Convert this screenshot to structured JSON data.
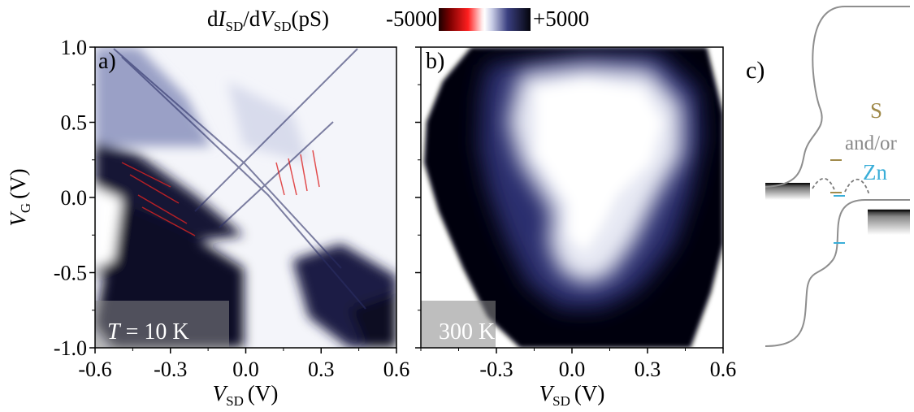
{
  "colorbar": {
    "quantity_main_1": "d",
    "quantity_sub_1": "I",
    "quantity_subscript_1": "SD",
    "quantity_slash": "/d",
    "quantity_sub_2": "V",
    "quantity_subscript_2": "SD",
    "quantity_unit": "(pS)",
    "min_label": "-5000",
    "max_label": "+5000",
    "colors": [
      "#8b0000",
      "#ff1a1a",
      "#ffffff",
      "#2a2e6e",
      "#050510"
    ]
  },
  "panels": {
    "a": {
      "label": "a)",
      "annotation_italic": "T",
      "annotation_rest": " = 10 K"
    },
    "b": {
      "label": "b)",
      "annotation": "300 K"
    },
    "c": {
      "label": "c)",
      "s_label": "S",
      "andor_label": "and/or",
      "zn_label": "Zn",
      "s_color": "#a08a4a",
      "andor_color": "#8a8a8a",
      "zn_color": "#3aaed8"
    }
  },
  "chart_data": [
    {
      "type": "heatmap",
      "panel": "a)",
      "title": "",
      "xlabel_symbol": "V",
      "xlabel_subscript": "SD",
      "xlabel_unit": "(V)",
      "ylabel_symbol": "V",
      "ylabel_subscript": "G",
      "ylabel_unit": "(V)",
      "xlim": [
        -0.6,
        0.6
      ],
      "ylim": [
        -1.0,
        1.0
      ],
      "xticks": [
        "-0.6",
        "-0.3",
        "0.0",
        "0.3",
        "0.6"
      ],
      "yticks": [
        "-1.0",
        "-0.5",
        "0.0",
        "0.5",
        "1.0"
      ],
      "color_range": [
        -5000,
        5000
      ],
      "color_unit": "pS",
      "annotation": "T = 10 K"
    },
    {
      "type": "heatmap",
      "panel": "b)",
      "title": "",
      "xlabel_symbol": "V",
      "xlabel_subscript": "SD",
      "xlabel_unit": "(V)",
      "xlim": [
        -0.6,
        0.6
      ],
      "ylim": [
        -1.0,
        1.0
      ],
      "xticks": [
        "-0.3",
        "0.0",
        "0.3",
        "0.6"
      ],
      "color_range": [
        -5000,
        5000
      ],
      "color_unit": "pS",
      "annotation": "300 K"
    }
  ]
}
